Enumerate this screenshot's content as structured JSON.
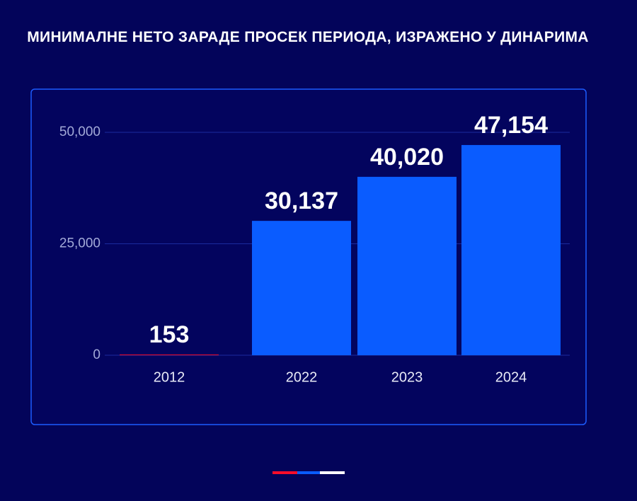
{
  "chart_data": {
    "type": "bar",
    "title": "МИНИМАЛНЕ НЕТО ЗАРАДЕ ПРОСЕК ПЕРИОДА, ИЗРАЖЕНО У ДИНАРИМА",
    "categories": [
      "2012",
      "2022",
      "2023",
      "2024"
    ],
    "values": [
      153,
      30137,
      40020,
      47154
    ],
    "value_labels": [
      "153",
      "30,137",
      "40,020",
      "47,154"
    ],
    "colors": [
      "#f90d2a",
      "#0a5cff",
      "#0a5cff",
      "#0a5cff"
    ],
    "ylim": [
      0,
      50000
    ],
    "yticks": [
      0,
      {
        "value": 25000,
        "label": "25,000"
      },
      {
        "value": 50000,
        "label": "50,000"
      }
    ],
    "grid": true
  }
}
